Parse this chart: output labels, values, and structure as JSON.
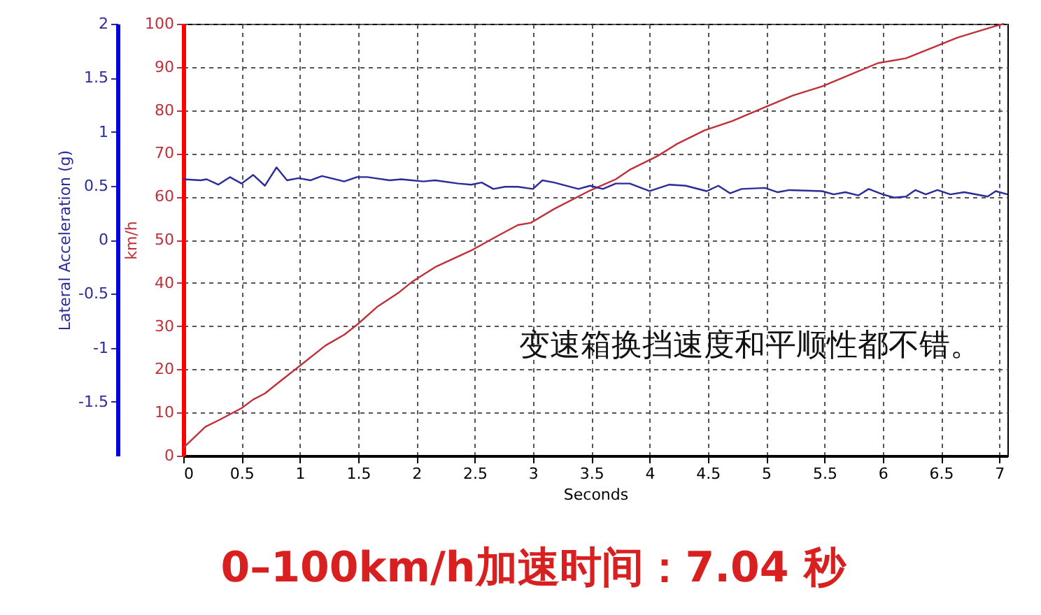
{
  "chart_data": {
    "type": "line",
    "xlabel": "Seconds",
    "ylabel": "km/h",
    "y2label": "Lateral Acceleration (g)",
    "xlim": [
      0,
      7.07
    ],
    "xticks": [
      0,
      0.5,
      1,
      1.5,
      2,
      2.5,
      3,
      3.5,
      4,
      4.5,
      5,
      5.5,
      6,
      6.5,
      7
    ],
    "ylim": [
      0,
      100
    ],
    "yticks": [
      0,
      10,
      20,
      30,
      40,
      50,
      60,
      70,
      80,
      90,
      100
    ],
    "y2lim": [
      -2,
      2
    ],
    "y2ticks": [
      -1.5,
      -1,
      -0.5,
      0,
      0.5,
      1,
      1.5,
      2
    ],
    "grid": true,
    "line_style": "solid",
    "marker": "none",
    "series": [
      {
        "color": "#c0303a",
        "axis": "y",
        "x": [
          0,
          0.19,
          0.31,
          0.5,
          0.6,
          0.7,
          0.82,
          0.99,
          1.22,
          1.38,
          1.49,
          1.67,
          1.85,
          1.96,
          2.17,
          2.47,
          2.65,
          2.87,
          2.98,
          3.18,
          3.49,
          3.71,
          3.83,
          4.07,
          4.23,
          4.47,
          4.71,
          4.99,
          5.23,
          5.48,
          5.72,
          5.96,
          6.2,
          6.44,
          6.64,
          6.97,
          7.04
        ],
        "values": [
          1.8,
          6.7,
          8.3,
          11,
          13,
          14.4,
          17,
          20.6,
          25.5,
          28,
          30.3,
          34.6,
          37.8,
          40.2,
          43.8,
          47.5,
          50.2,
          53.4,
          53.9,
          57.1,
          61.4,
          64,
          66.2,
          69.4,
          72.1,
          75.3,
          77.5,
          80.7,
          83.4,
          85.5,
          88.2,
          90.9,
          92,
          94.6,
          96.8,
          99.5,
          100
        ]
      },
      {
        "color": "#2b2b9a",
        "axis": "y2",
        "x": [
          0,
          0.15,
          0.2,
          0.3,
          0.4,
          0.5,
          0.6,
          0.7,
          0.8,
          0.89,
          0.99,
          1.09,
          1.19,
          1.38,
          1.49,
          1.58,
          1.77,
          1.87,
          1.96,
          2.06,
          2.16,
          2.36,
          2.47,
          2.56,
          2.66,
          2.76,
          2.87,
          3.0,
          3.08,
          3.18,
          3.39,
          3.49,
          3.6,
          3.71,
          3.83,
          4.0,
          4.17,
          4.31,
          4.49,
          4.59,
          4.69,
          4.79,
          4.99,
          5.1,
          5.2,
          5.48,
          5.58,
          5.68,
          5.79,
          5.88,
          6.0,
          6.1,
          6.2,
          6.28,
          6.37,
          6.47,
          6.58,
          6.7,
          6.9,
          6.97,
          7.07
        ],
        "values": [
          0.56,
          0.55,
          0.56,
          0.51,
          0.58,
          0.52,
          0.6,
          0.5,
          0.67,
          0.55,
          0.57,
          0.55,
          0.59,
          0.54,
          0.58,
          0.58,
          0.55,
          0.56,
          0.55,
          0.54,
          0.55,
          0.52,
          0.51,
          0.53,
          0.47,
          0.49,
          0.49,
          0.47,
          0.55,
          0.53,
          0.47,
          0.5,
          0.47,
          0.52,
          0.52,
          0.45,
          0.51,
          0.5,
          0.45,
          0.5,
          0.43,
          0.47,
          0.48,
          0.44,
          0.46,
          0.45,
          0.42,
          0.44,
          0.41,
          0.47,
          0.42,
          0.39,
          0.4,
          0.46,
          0.42,
          0.46,
          0.42,
          0.44,
          0.4,
          0.45,
          0.42
        ]
      }
    ],
    "annotations": [
      "变速箱换挡速度和平顺性都不错。",
      "0–100km/h加速时间：7.04 秒"
    ]
  }
}
